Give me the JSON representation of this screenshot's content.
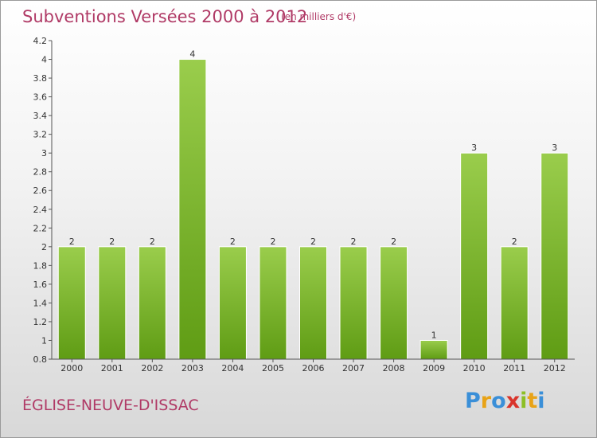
{
  "header": {
    "title": "Subventions Versées 2000 à 2012",
    "subtitle": "(en milliers d'€)"
  },
  "footer": {
    "commune": "ÉGLISE-NEUVE-D'ISSAC",
    "brand": {
      "letters": [
        "P",
        "r",
        "o",
        "x",
        "i",
        "t",
        "i"
      ],
      "colors": [
        "#3a8fd8",
        "#e8a317",
        "#3a8fd8",
        "#d9342b",
        "#8cbf26",
        "#e8a317",
        "#3a8fd8"
      ]
    }
  },
  "colors": {
    "bar_top": "#9acd4c",
    "bar_bottom": "#5f9c14",
    "bar_edge": "#ffffff",
    "accent": "#b03a66"
  },
  "chart_data": {
    "type": "bar",
    "categories": [
      "2000",
      "2001",
      "2002",
      "2003",
      "2004",
      "2005",
      "2006",
      "2007",
      "2008",
      "2009",
      "2010",
      "2011",
      "2012"
    ],
    "values": [
      2,
      2,
      2,
      4,
      2,
      2,
      2,
      2,
      2,
      1,
      3,
      2,
      3
    ],
    "value_labels": [
      "2",
      "2",
      "2",
      "4",
      "2",
      "2",
      "2",
      "2",
      "2",
      "1",
      "3",
      "2",
      "3"
    ],
    "yticks": [
      0.8,
      1,
      1.2,
      1.4,
      1.6,
      1.8,
      2,
      2.2,
      2.4,
      2.6,
      2.8,
      3,
      3.2,
      3.4,
      3.6,
      3.8,
      4,
      4.2
    ],
    "ytick_labels": [
      "0.8",
      "1",
      "1.2",
      "1.4",
      "1.6",
      "1.8",
      "2",
      "2.2",
      "2.4",
      "2.6",
      "2.8",
      "3",
      "3.2",
      "3.4",
      "3.6",
      "3.8",
      "4",
      "4.2"
    ],
    "ylim": [
      0.8,
      4.2
    ],
    "ylabel": "",
    "xlabel": "",
    "grid": false,
    "legend": "none"
  }
}
